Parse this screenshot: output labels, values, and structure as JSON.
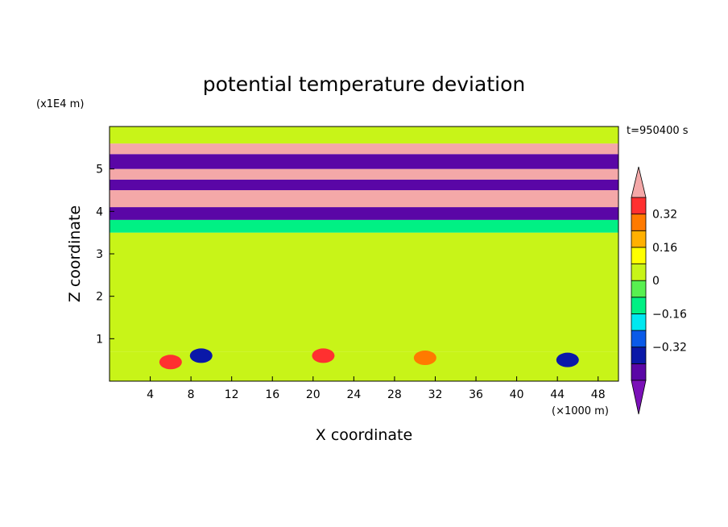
{
  "chart_data": {
    "type": "heatmap",
    "title": "potential temperature deviation",
    "time_label": "t=950400 s",
    "xlabel": "X coordinate",
    "ylabel": "Z coordinate",
    "x_unit": "(×1000 m)",
    "y_unit": "(x1E4 m)",
    "xlim": [
      0,
      50
    ],
    "ylim": [
      0,
      6
    ],
    "x_ticks": [
      4,
      8,
      12,
      16,
      20,
      24,
      28,
      32,
      36,
      40,
      44,
      48
    ],
    "y_ticks": [
      1,
      2,
      3,
      4,
      5
    ],
    "colorbar": {
      "levels": [
        -0.48,
        -0.4,
        -0.32,
        -0.24,
        -0.16,
        -0.08,
        0,
        0.08,
        0.16,
        0.24,
        0.32,
        0.4
      ],
      "tick_values": [
        0.32,
        0.16,
        0,
        -0.16,
        -0.32
      ],
      "tick_labels": [
        "0.32",
        "0.16",
        "0",
        "−0.16",
        "−0.32"
      ],
      "colors_low_to_high": [
        "#7b10b8",
        "#5a06a6",
        "#0a18a8",
        "#0a5ae8",
        "#00e8f0",
        "#00f084",
        "#58f050",
        "#c8f418",
        "#ffff00",
        "#ffb000",
        "#ff7a00",
        "#ff3030",
        "#f4a8a8"
      ]
    },
    "bands": [
      {
        "z": [
          0.0,
          0.7
        ],
        "value": 0.04
      },
      {
        "z": [
          0.7,
          3.5
        ],
        "value": 0.0
      },
      {
        "z": [
          3.5,
          3.8
        ],
        "value": -0.12
      },
      {
        "z": [
          3.8,
          4.1
        ],
        "value": -0.44
      },
      {
        "z": [
          4.1,
          4.5
        ],
        "value": 0.44
      },
      {
        "z": [
          4.5,
          4.75
        ],
        "value": -0.44
      },
      {
        "z": [
          4.75,
          5.0
        ],
        "value": 0.44
      },
      {
        "z": [
          5.0,
          5.35
        ],
        "value": -0.44
      },
      {
        "z": [
          5.35,
          5.6
        ],
        "value": 0.44
      },
      {
        "z": [
          5.6,
          6.0
        ],
        "value": 0.02
      }
    ],
    "features": [
      {
        "x": 6,
        "z": 0.45,
        "value": 0.36
      },
      {
        "x": 9,
        "z": 0.6,
        "value": -0.36
      },
      {
        "x": 21,
        "z": 0.6,
        "value": 0.36
      },
      {
        "x": 31,
        "z": 0.55,
        "value": 0.24
      },
      {
        "x": 45,
        "z": 0.5,
        "value": -0.4
      }
    ]
  }
}
